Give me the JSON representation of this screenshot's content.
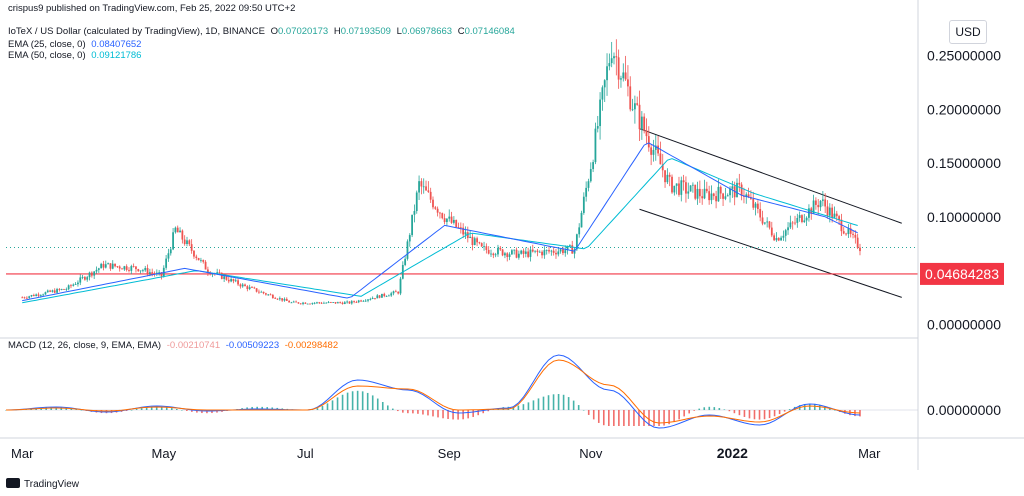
{
  "header": {
    "publisher_line": "crispus9 published on TradingView.com, Feb 25, 2022 09:50 UTC+2",
    "symbol_line": "IoTeX / US Dollar (calculated by TradingView), 1D, BINANCE",
    "ohlc": [
      {
        "label": "O",
        "value": "0.07020173"
      },
      {
        "label": "H",
        "value": "0.07193509"
      },
      {
        "label": "L",
        "value": "0.06978663"
      },
      {
        "label": "C",
        "value": "0.07146084"
      }
    ],
    "ema25_label": "EMA (25, close, 0)",
    "ema25_value": "0.08407652",
    "ema50_label": "EMA (50, close, 0)",
    "ema50_value": "0.09121786",
    "macd_label": "MACD (12, 26, close, 9, EMA, EMA)",
    "macd_values": [
      "-0.00210741",
      "-0.00509223",
      "-0.00298482"
    ]
  },
  "currency_button": "USD",
  "brand": "TradingView",
  "colors": {
    "up": "#26a69a",
    "down": "#ef5350",
    "ema25": "#2962ff",
    "ema50": "#00bcd4",
    "macd": "#2962ff",
    "signal": "#ff6d00",
    "support": "#f23645",
    "channel": "#131722",
    "last_price": "#26a69a"
  },
  "chart_data": [
    {
      "type": "candlestick",
      "title": "IoTeX / US Dollar (calculated by TradingView), 1D, BINANCE",
      "x_tick_labels": [
        "Mar",
        "May",
        "Jul",
        "Sep",
        "Nov",
        "2022",
        "Mar"
      ],
      "y_tick_labels": [
        "0.25000000",
        "0.20000000",
        "0.15000000",
        "0.10000000",
        "0.00000000"
      ],
      "ylim": [
        -0.01,
        0.285
      ],
      "support_level": {
        "value": 0.04684283,
        "label": "0.04684283"
      },
      "last_close": 0.07146084,
      "price_path": [
        {
          "date": "2021-03-01",
          "close": 0.025
        },
        {
          "date": "2021-03-20",
          "close": 0.033
        },
        {
          "date": "2021-04-05",
          "close": 0.055
        },
        {
          "date": "2021-04-20",
          "close": 0.052
        },
        {
          "date": "2021-04-30",
          "close": 0.045
        },
        {
          "date": "2021-05-06",
          "close": 0.088
        },
        {
          "date": "2021-05-20",
          "close": 0.05
        },
        {
          "date": "2021-06-05",
          "close": 0.035
        },
        {
          "date": "2021-06-25",
          "close": 0.02
        },
        {
          "date": "2021-07-20",
          "close": 0.02
        },
        {
          "date": "2021-08-10",
          "close": 0.03
        },
        {
          "date": "2021-08-19",
          "close": 0.13
        },
        {
          "date": "2021-08-30",
          "close": 0.1
        },
        {
          "date": "2021-09-15",
          "close": 0.07
        },
        {
          "date": "2021-10-01",
          "close": 0.065
        },
        {
          "date": "2021-10-25",
          "close": 0.07
        },
        {
          "date": "2021-11-02",
          "close": 0.16
        },
        {
          "date": "2021-11-10",
          "close": 0.26
        },
        {
          "date": "2021-11-20",
          "close": 0.2
        },
        {
          "date": "2021-12-05",
          "close": 0.13
        },
        {
          "date": "2021-12-20",
          "close": 0.12
        },
        {
          "date": "2022-01-05",
          "close": 0.125
        },
        {
          "date": "2022-01-20",
          "close": 0.08
        },
        {
          "date": "2022-02-08",
          "close": 0.115
        },
        {
          "date": "2022-02-25",
          "close": 0.07146084
        }
      ],
      "ema25_path": [
        {
          "date": "2021-03-01",
          "value": 0.022
        },
        {
          "date": "2021-05-10",
          "value": 0.052
        },
        {
          "date": "2021-07-20",
          "value": 0.024
        },
        {
          "date": "2021-08-30",
          "value": 0.092
        },
        {
          "date": "2021-10-25",
          "value": 0.068
        },
        {
          "date": "2021-11-25",
          "value": 0.17
        },
        {
          "date": "2022-01-05",
          "value": 0.12
        },
        {
          "date": "2022-02-10",
          "value": 0.1
        },
        {
          "date": "2022-02-25",
          "value": 0.08407652
        }
      ],
      "ema50_path": [
        {
          "date": "2021-03-01",
          "value": 0.02
        },
        {
          "date": "2021-05-15",
          "value": 0.05
        },
        {
          "date": "2021-07-25",
          "value": 0.026
        },
        {
          "date": "2021-09-10",
          "value": 0.085
        },
        {
          "date": "2021-10-30",
          "value": 0.07
        },
        {
          "date": "2021-12-05",
          "value": 0.155
        },
        {
          "date": "2022-01-10",
          "value": 0.122
        },
        {
          "date": "2022-02-25",
          "value": 0.09121786
        }
      ],
      "channel_lines": [
        {
          "start": {
            "date": "2021-11-22",
            "value": 0.182
          },
          "end": {
            "date": "2022-03-15",
            "value": 0.094
          }
        },
        {
          "start": {
            "date": "2021-11-22",
            "value": 0.107
          },
          "end": {
            "date": "2022-03-15",
            "value": 0.025
          }
        }
      ]
    },
    {
      "type": "line",
      "title": "MACD (12, 26, close, 9, EMA, EMA)",
      "y_tick_labels": [
        "0.00000000"
      ],
      "series": [
        {
          "name": "MACD",
          "values": [
            0.0,
            0.003,
            -0.002,
            0.004,
            -0.001,
            0.001,
            0.0,
            0.03,
            0.02,
            -0.003,
            0.002,
            0.055,
            0.02,
            -0.018,
            -0.005,
            -0.015,
            0.006,
            -0.005
          ]
        },
        {
          "name": "Signal",
          "values": [
            0.0,
            0.002,
            -0.001,
            0.003,
            0.0,
            0.0,
            0.0,
            0.024,
            0.021,
            0.0,
            0.001,
            0.05,
            0.025,
            -0.013,
            -0.006,
            -0.012,
            0.004,
            -0.003
          ]
        }
      ],
      "last_values": {
        "histogram": -0.00210741,
        "macd": -0.00509223,
        "signal": -0.00298482
      }
    }
  ]
}
